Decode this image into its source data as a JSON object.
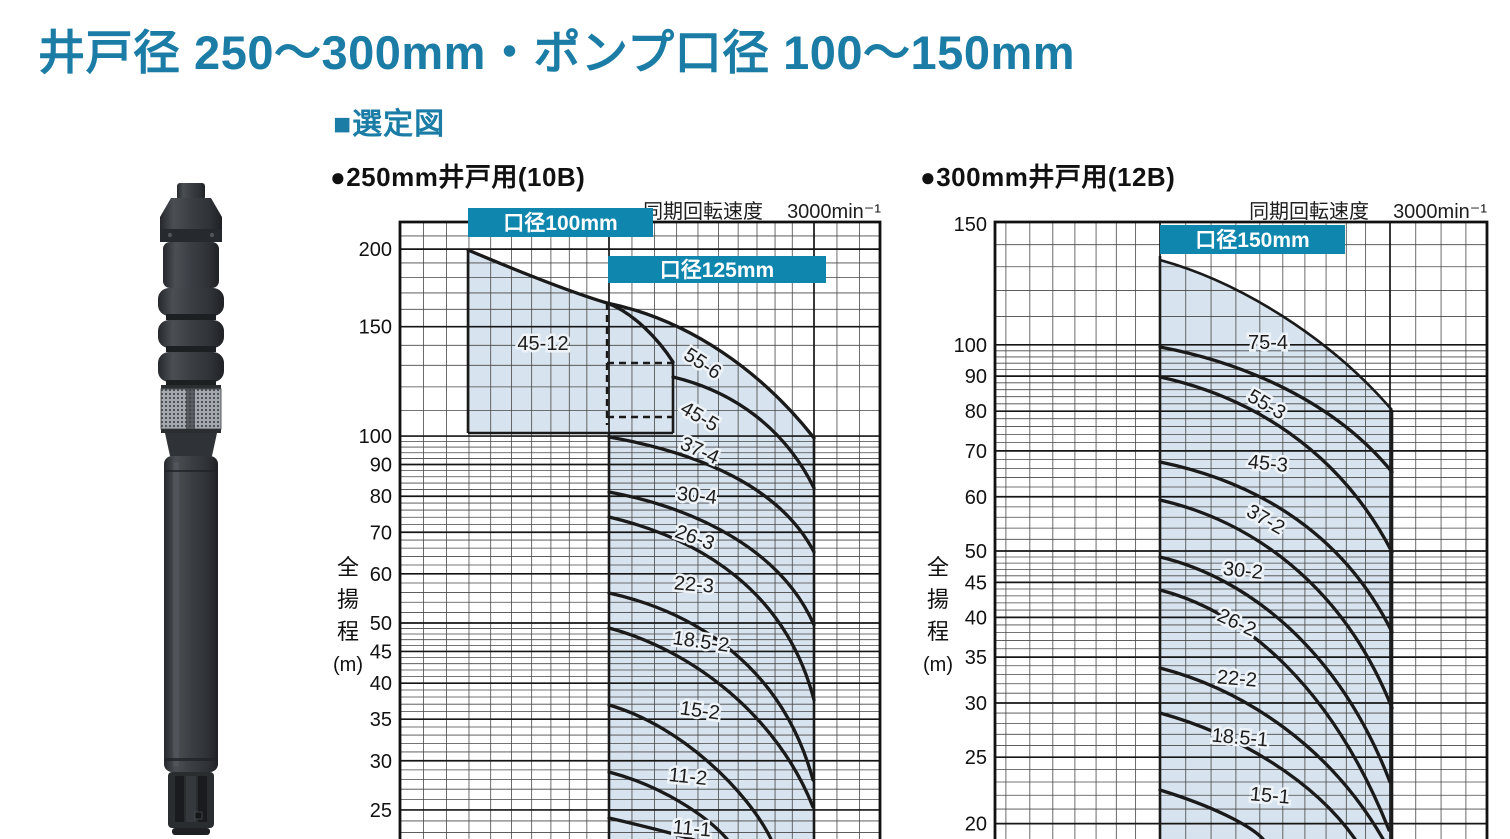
{
  "page": {
    "title": "井戸径 250〜300mm・ポンプ口径 100〜150mm",
    "section_heading": "■選定図"
  },
  "colors": {
    "accent_teal": "#0f86ad",
    "heading_teal": "#1b7ca6",
    "shade_blue": "#d7e3ee",
    "curve_black": "#1a1a1a"
  },
  "chart_data": [
    {
      "type": "line",
      "title": "●250mm井戸用(10B)",
      "annotation_label": "同期回転速度",
      "annotation_value": "3000min⁻¹",
      "ylabel": "全揚程",
      "y_unit": "(m)",
      "y_scale": "log",
      "y_ticks": [
        200,
        150,
        100,
        90,
        80,
        70,
        60,
        50,
        45,
        40,
        35,
        30,
        25
      ],
      "x_axis_labels_visible": false,
      "grid": true,
      "legend_position": "none",
      "bore_regions": [
        "口径100mm",
        "口径125mm"
      ],
      "curves": [
        "45-12",
        "55-6",
        "45-5",
        "37-4",
        "30-4",
        "26-3",
        "22-3",
        "18.5-2",
        "15-2",
        "11-2",
        "11-1"
      ]
    },
    {
      "type": "line",
      "title": "●300mm井戸用(12B)",
      "annotation_label": "同期回転速度",
      "annotation_value": "3000min⁻¹",
      "ylabel": "全揚程",
      "y_unit": "(m)",
      "y_scale": "log",
      "y_ticks": [
        150,
        100,
        90,
        80,
        70,
        60,
        50,
        45,
        40,
        35,
        30,
        25,
        20
      ],
      "x_axis_labels_visible": false,
      "grid": true,
      "legend_position": "none",
      "bore_regions": [
        "口径150mm"
      ],
      "curves": [
        "75-4",
        "55-3",
        "45-3",
        "37-2",
        "30-2",
        "26-2",
        "22-2",
        "18.5-1",
        "15-1"
      ]
    }
  ]
}
